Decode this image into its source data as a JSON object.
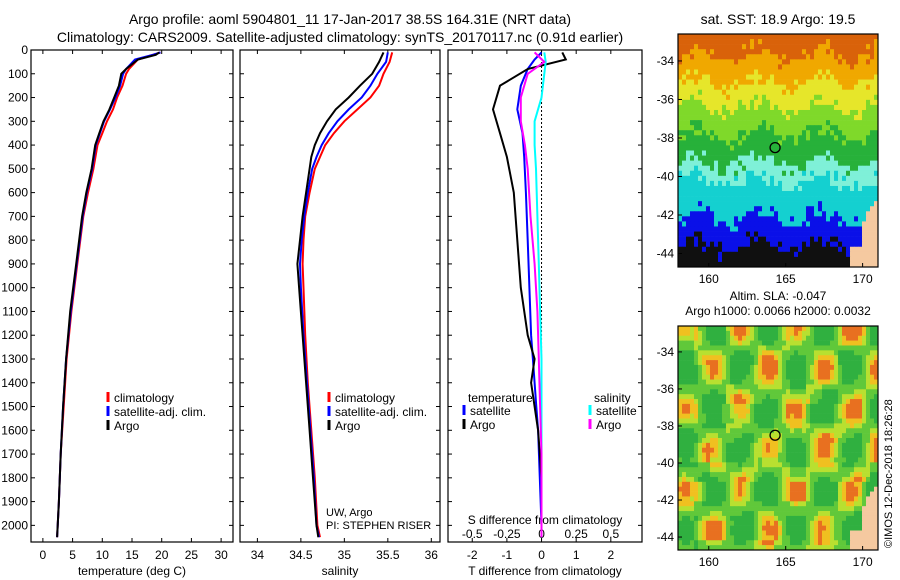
{
  "header": {
    "title_line1": "Argo profile: aoml 5904801_11 17-Jan-2017 38.5S 164.31E (NRT data)",
    "title_line2": "Climatology: CARS2009. Satellite-adjusted climatology: synTS_20170117.nc (0.91d earlier)"
  },
  "colors": {
    "climatology": "#ff0000",
    "satellite": "#0000ff",
    "argo": "#000000",
    "salinity_satellite": "#00ffff",
    "salinity_argo": "#ff00ff"
  },
  "depth_axis": {
    "ticks": [
      0,
      100,
      200,
      300,
      400,
      500,
      600,
      700,
      800,
      900,
      1000,
      1100,
      1200,
      1300,
      1400,
      1500,
      1600,
      1700,
      1800,
      1900,
      2000
    ],
    "ylim": [
      2070,
      0
    ]
  },
  "chart_data": [
    {
      "type": "line",
      "xlabel": "temperature (deg C)",
      "xlim": [
        -2,
        32
      ],
      "xticks": [
        0,
        5,
        10,
        15,
        20,
        25,
        30
      ],
      "y_axis": "depth",
      "legend": {
        "items": [
          {
            "label": "climatology",
            "color": "#ff0000"
          },
          {
            "label": "satellite-adj. clim.",
            "color": "#0000ff"
          },
          {
            "label": "Argo",
            "color": "#000000"
          }
        ]
      },
      "series": [
        {
          "name": "climatology",
          "color": "#ff0000",
          "x": [
            19.8,
            18.5,
            16,
            14.5,
            14,
            13.4,
            12.5,
            11.8,
            10.8,
            10,
            9.2,
            8.5,
            7.6,
            6.8,
            5.8,
            4.8,
            4.0,
            3.5,
            3.0,
            2.7,
            2.5,
            2.4
          ],
          "y": [
            10,
            20,
            40,
            80,
            100,
            150,
            200,
            250,
            300,
            350,
            400,
            500,
            600,
            700,
            900,
            1100,
            1300,
            1500,
            1700,
            1900,
            2000,
            2050
          ]
        },
        {
          "name": "satellite-adj. clim.",
          "color": "#0000ff",
          "x": [
            19.8,
            18.5,
            15.5,
            14,
            13.5,
            13,
            12.2,
            11.3,
            10.3,
            9.6,
            8.9,
            8.3,
            7.4,
            6.7,
            5.7,
            4.7,
            3.9,
            3.4,
            3.0,
            2.7,
            2.5,
            2.4
          ],
          "y": [
            10,
            20,
            40,
            80,
            100,
            150,
            200,
            250,
            300,
            350,
            400,
            500,
            600,
            700,
            900,
            1100,
            1300,
            1500,
            1700,
            1900,
            2000,
            2050
          ]
        },
        {
          "name": "Argo",
          "color": "#000000",
          "x": [
            19.6,
            19,
            16,
            14,
            13.2,
            12.8,
            12,
            11.2,
            10.2,
            9.5,
            8.8,
            8.2,
            7.3,
            6.6,
            5.6,
            4.6,
            3.9,
            3.4,
            3.0,
            2.7,
            2.5,
            2.4
          ],
          "y": [
            10,
            20,
            40,
            80,
            100,
            150,
            200,
            250,
            300,
            350,
            400,
            500,
            600,
            700,
            900,
            1100,
            1300,
            1500,
            1700,
            1900,
            2000,
            2050
          ]
        }
      ]
    },
    {
      "type": "line",
      "xlabel": "salinity",
      "xlim": [
        33.8,
        36.1
      ],
      "xticks": [
        34,
        34.5,
        35,
        35.5,
        36
      ],
      "y_axis": "depth",
      "annotation_lines": [
        "UW, Argo",
        "PI: STEPHEN RISER"
      ],
      "legend": {
        "items": [
          {
            "label": "climatology",
            "color": "#ff0000"
          },
          {
            "label": "satellite-adj. clim.",
            "color": "#0000ff"
          },
          {
            "label": "Argo",
            "color": "#000000"
          }
        ]
      },
      "series": [
        {
          "name": "climatology",
          "color": "#ff0000",
          "x": [
            35.55,
            35.52,
            35.45,
            35.4,
            35.3,
            35.15,
            35.0,
            34.88,
            34.78,
            34.72,
            34.66,
            34.6,
            34.55,
            34.53,
            34.52,
            34.53,
            34.55,
            34.58,
            34.62,
            34.66,
            34.69,
            34.72
          ],
          "y": [
            10,
            50,
            100,
            150,
            200,
            250,
            300,
            350,
            400,
            450,
            500,
            600,
            700,
            800,
            900,
            1000,
            1200,
            1400,
            1600,
            1800,
            2000,
            2050
          ]
        },
        {
          "name": "satellite-adj. clim.",
          "color": "#0000ff",
          "x": [
            35.5,
            35.48,
            35.38,
            35.3,
            35.2,
            35.05,
            34.92,
            34.82,
            34.74,
            34.68,
            34.63,
            34.58,
            34.54,
            34.51,
            34.49,
            34.5,
            34.53,
            34.57,
            34.61,
            34.65,
            34.68,
            34.71
          ],
          "y": [
            10,
            50,
            100,
            150,
            200,
            250,
            300,
            350,
            400,
            450,
            500,
            600,
            700,
            800,
            900,
            1000,
            1200,
            1400,
            1600,
            1800,
            2000,
            2050
          ]
        },
        {
          "name": "Argo",
          "color": "#000000",
          "x": [
            35.45,
            35.4,
            35.32,
            35.18,
            35.05,
            34.9,
            34.8,
            34.72,
            34.66,
            34.62,
            34.6,
            34.56,
            34.52,
            34.49,
            34.46,
            34.48,
            34.52,
            34.56,
            34.6,
            34.64,
            34.68,
            34.7
          ],
          "y": [
            10,
            50,
            100,
            150,
            200,
            250,
            300,
            350,
            400,
            450,
            500,
            600,
            700,
            800,
            900,
            1000,
            1200,
            1400,
            1600,
            1800,
            2000,
            2050
          ]
        }
      ]
    },
    {
      "type": "line",
      "xlabel": "T difference from climatology",
      "xlim": [
        -2.7,
        2.9
      ],
      "xticks": [
        -2,
        -1,
        0,
        1,
        2
      ],
      "top_xlabel": "S difference from climatology",
      "top_xticks": [
        -0.5,
        -0.25,
        0,
        0.25,
        0.5
      ],
      "top_xtick_labels": [
        "-0.5",
        "-0.25",
        "0",
        "0.25",
        "0.5"
      ],
      "y_axis": "depth",
      "legend_temperature": {
        "title": "temperature",
        "items": [
          {
            "label": "satellite",
            "color": "#0000ff"
          },
          {
            "label": "Argo",
            "color": "#000000"
          }
        ]
      },
      "legend_salinity": {
        "title": "salinity",
        "items": [
          {
            "label": "satellite",
            "color": "#00ffff"
          },
          {
            "label": "Argo",
            "color": "#ff00ff"
          }
        ]
      },
      "series": [
        {
          "name": "satellite",
          "variable": "temperature",
          "color": "#0000ff",
          "x": [
            0,
            -0.2,
            -0.4,
            -0.6,
            -0.7,
            -0.55,
            -0.5,
            -0.45,
            -0.4,
            -0.35,
            -0.3,
            -0.25,
            -0.2,
            -0.15,
            -0.1,
            -0.05,
            0
          ],
          "y": [
            10,
            40,
            80,
            150,
            250,
            350,
            450,
            600,
            800,
            1000,
            1200,
            1300,
            1400,
            1500,
            1600,
            1800,
            2000
          ]
        },
        {
          "name": "Argo",
          "variable": "temperature",
          "color": "#000000",
          "x": [
            0.6,
            0.7,
            -0.4,
            -1.2,
            -1.4,
            -1.2,
            -1.0,
            -0.8,
            -0.7,
            -0.6,
            -0.4,
            -0.2,
            -0.3,
            -0.2,
            -0.1,
            0,
            0
          ],
          "y": [
            10,
            40,
            80,
            150,
            250,
            350,
            450,
            600,
            800,
            1000,
            1200,
            1300,
            1400,
            1500,
            1600,
            1800,
            2000
          ]
        },
        {
          "name": "satellite",
          "variable": "salinity",
          "color": "#00ffff",
          "x": [
            0.02,
            0.03,
            0.02,
            0.0,
            -0.05,
            -0.05,
            -0.04,
            -0.03,
            -0.02,
            -0.01,
            0,
            0,
            0,
            0,
            0
          ],
          "y": [
            10,
            50,
            100,
            200,
            300,
            400,
            500,
            700,
            900,
            1100,
            1300,
            1500,
            1700,
            1900,
            2050
          ]
        },
        {
          "name": "Argo",
          "variable": "salinity",
          "color": "#ff00ff",
          "x": [
            -0.05,
            0.02,
            -0.1,
            -0.15,
            -0.15,
            -0.12,
            -0.1,
            -0.08,
            -0.05,
            -0.03,
            -0.02,
            -0.01,
            0,
            0,
            0
          ],
          "y": [
            10,
            50,
            100,
            200,
            300,
            400,
            500,
            700,
            900,
            1100,
            1300,
            1500,
            1700,
            1900,
            2050
          ]
        }
      ]
    },
    {
      "type": "heatmap",
      "title": "sat. SST: 18.9 Argo: 19.5",
      "xlim": [
        158,
        171
      ],
      "ylim": [
        -44.7,
        -32.6
      ],
      "xticks": [
        160,
        165,
        170
      ],
      "yticks": [
        -34,
        -36,
        -38,
        -40,
        -42,
        -44
      ],
      "marker": {
        "lon": 164.31,
        "lat": -38.5
      }
    },
    {
      "type": "heatmap",
      "title": "Altim. SLA: -0.047",
      "subtitle": "Argo h1000: 0.0066 h2000: 0.0032",
      "xlim": [
        158,
        171
      ],
      "ylim": [
        -44.7,
        -32.6
      ],
      "xticks": [
        160,
        165,
        170
      ],
      "yticks": [
        -34,
        -36,
        -38,
        -40,
        -42,
        -44
      ],
      "marker": {
        "lon": 164.31,
        "lat": -38.5
      }
    }
  ],
  "footer": {
    "stamp": "©IMOS 12-Dec-2018 18:26:28"
  }
}
